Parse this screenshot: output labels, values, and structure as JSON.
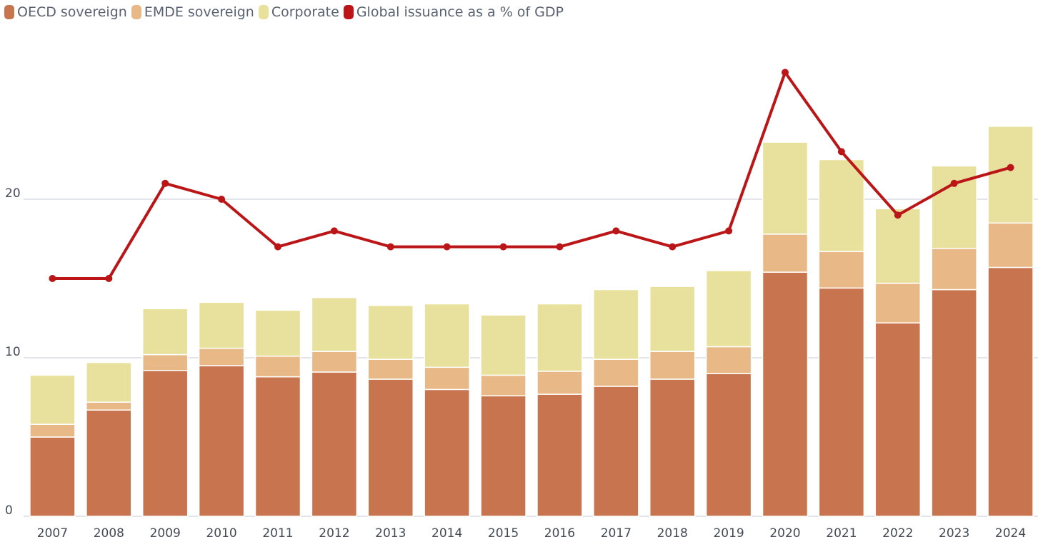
{
  "chart_data": {
    "type": "bar",
    "stacked": true,
    "title": "",
    "xlabel": "",
    "ylabel": "",
    "ylim": [
      0,
      30
    ],
    "yticks": [
      0,
      10,
      20
    ],
    "grid": true,
    "legend_position": "top-left",
    "categories": [
      "2007",
      "2008",
      "2009",
      "2010",
      "2011",
      "2012",
      "2013",
      "2014",
      "2015",
      "2016",
      "2017",
      "2018",
      "2019",
      "2020",
      "2021",
      "2022",
      "2023",
      "2024"
    ],
    "series": [
      {
        "name": "OECD sovereign",
        "type": "bar",
        "color": "#c8754f",
        "values": [
          5.0,
          6.7,
          9.2,
          9.5,
          8.8,
          9.1,
          8.65,
          8.0,
          7.6,
          7.7,
          8.2,
          8.65,
          9.0,
          15.4,
          14.4,
          12.2,
          14.3,
          15.7
        ]
      },
      {
        "name": "EMDE sovereign",
        "type": "bar",
        "color": "#e8b887",
        "values": [
          0.8,
          0.5,
          1.0,
          1.1,
          1.3,
          1.3,
          1.25,
          1.4,
          1.3,
          1.45,
          1.7,
          1.75,
          1.7,
          2.4,
          2.3,
          2.5,
          2.6,
          2.8
        ]
      },
      {
        "name": "Corporate",
        "type": "bar",
        "color": "#e8e19e",
        "values": [
          3.1,
          2.5,
          2.9,
          2.9,
          2.9,
          3.4,
          3.4,
          4.0,
          3.8,
          4.25,
          4.4,
          4.1,
          4.8,
          5.8,
          5.8,
          4.7,
          5.2,
          6.1
        ]
      },
      {
        "name": "Global issuance as a % of GDP",
        "type": "line",
        "color": "#bb1518",
        "values": [
          15,
          15,
          21,
          20,
          17,
          18,
          17,
          17,
          17,
          17,
          18,
          17,
          18,
          28,
          23,
          19,
          21,
          22
        ]
      }
    ]
  }
}
